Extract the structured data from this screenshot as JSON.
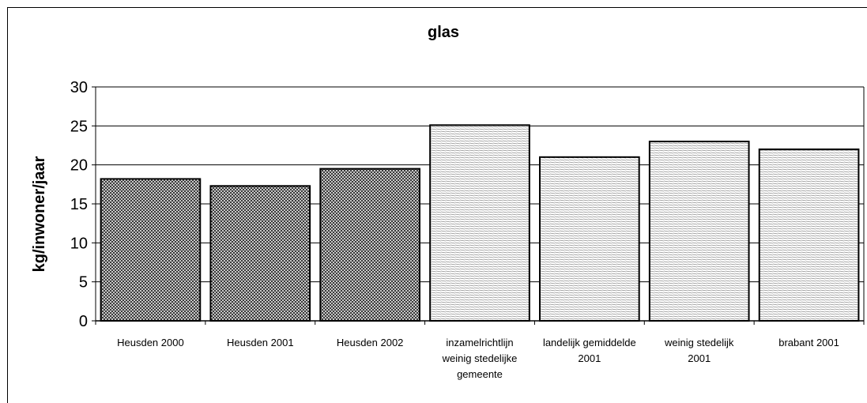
{
  "chart_data": {
    "type": "bar",
    "title": "glas",
    "xlabel": "",
    "ylabel": "kg/inwoner/jaar",
    "ylim": [
      0,
      30
    ],
    "yticks": [
      "0",
      "5",
      "10",
      "15",
      "20",
      "25",
      "30"
    ],
    "grid": "horizontal",
    "categories": [
      [
        "Heusden 2000"
      ],
      [
        "Heusden 2001"
      ],
      [
        "Heusden 2002"
      ],
      [
        "inzamelrichtlijn",
        "weinig stedelijke",
        "gemeente"
      ],
      [
        "landelijk gemiddelde",
        "2001"
      ],
      [
        "weinig stedelijk",
        "2001"
      ],
      [
        "brabant 2001"
      ]
    ],
    "values": [
      18.2,
      17.3,
      19.5,
      25.1,
      21.0,
      23.0,
      22.0
    ],
    "fill_patterns": [
      "dark-crosshatch",
      "dark-crosshatch",
      "dark-crosshatch",
      "light-horizontal",
      "light-horizontal",
      "light-horizontal",
      "light-horizontal"
    ],
    "colors": {
      "bar_edge": "#000000",
      "grid": "#000000",
      "dark_fill": "#5a5a5a",
      "light_fill": "#bfbfbf"
    }
  }
}
